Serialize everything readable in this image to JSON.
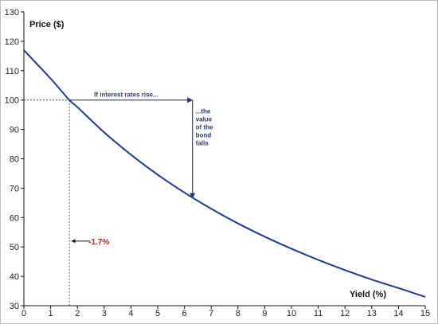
{
  "chart_data": {
    "type": "line",
    "ylabel": "Price ($)",
    "xlabel": "Yield (%)",
    "xlim": [
      0,
      15
    ],
    "ylim": [
      30,
      130
    ],
    "x_ticks": [
      "0",
      "1",
      "2",
      "3",
      "4",
      "5",
      "6",
      "7",
      "8",
      "9",
      "10",
      "11",
      "12",
      "13",
      "14",
      "15"
    ],
    "y_ticks": [
      "30",
      "40",
      "50",
      "60",
      "70",
      "80",
      "90",
      "100",
      "110",
      "120",
      "130"
    ],
    "grid": false,
    "series": [
      {
        "color": "#1f3a93",
        "x": [
          0,
          1,
          1.7,
          2,
          3,
          4,
          5,
          6,
          7,
          8,
          9,
          10,
          11,
          12,
          13,
          14,
          15
        ],
        "y": [
          117,
          107.3,
          100,
          97.6,
          89.0,
          81.4,
          74.6,
          68.5,
          63.0,
          58.0,
          53.5,
          49.4,
          45.6,
          42.1,
          38.9,
          36.0,
          33.0
        ]
      }
    ],
    "annotations": {
      "rise_text": "If interest rates rise...",
      "falls_lines": [
        "...the",
        "value",
        "of the",
        "bond",
        "falls"
      ],
      "pct_text": "-1.7%",
      "rise_from": [
        1.7,
        100
      ],
      "rise_to": [
        6.3,
        100
      ],
      "fall_from": [
        6.3,
        100
      ],
      "fall_to": [
        6.3,
        66.6
      ],
      "ref_x": 1.7,
      "pct_y": 52
    },
    "colors": {
      "curve": "#1f3a93",
      "arrow": "#2a3a70",
      "pct": "#d11f1f"
    }
  }
}
